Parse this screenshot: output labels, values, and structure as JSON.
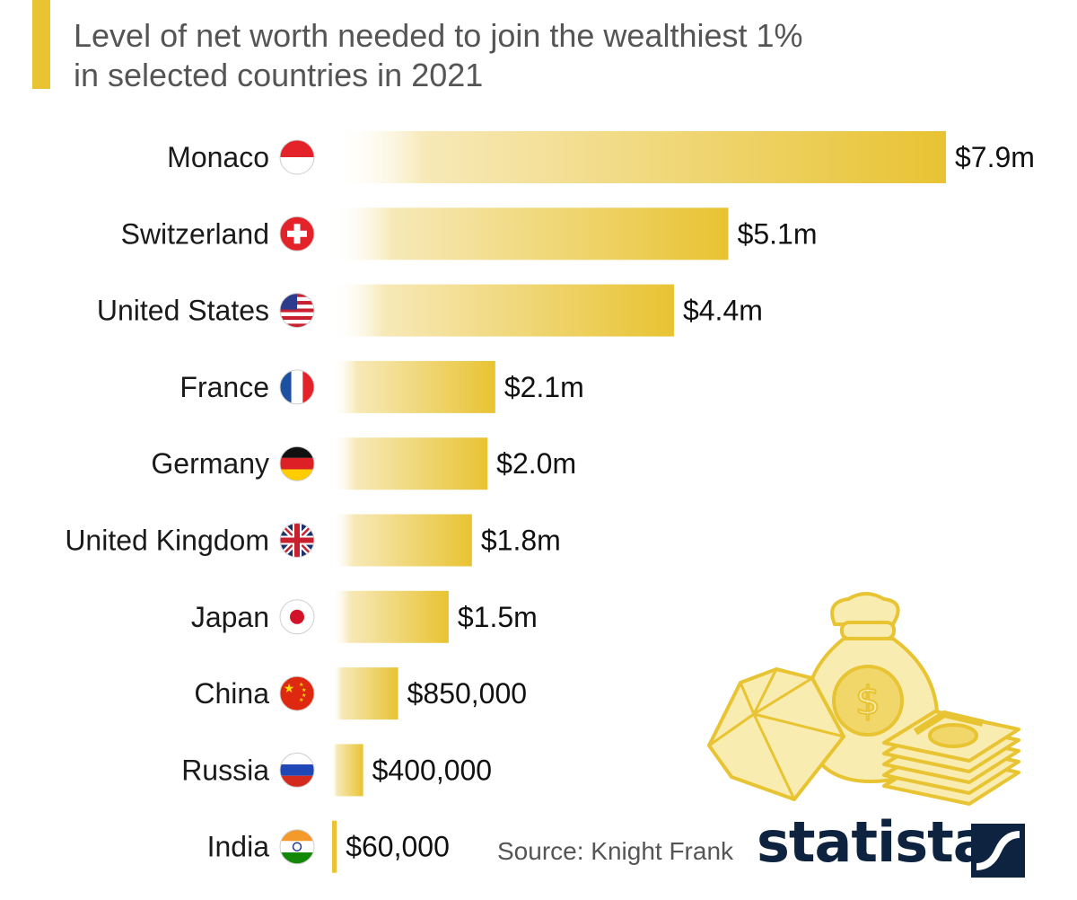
{
  "title": {
    "line1": "Level of net worth needed to join the wealthiest 1%",
    "line2": "in selected countries in 2021"
  },
  "source": "Source: Knight Frank",
  "brand": "statista",
  "colors": {
    "accent": "#e8c332",
    "bar_end": "#e8c332",
    "bar_start": "#ffffff",
    "logo": "#0d2340"
  },
  "chart_data": {
    "type": "bar",
    "orientation": "horizontal",
    "categories": [
      "Monaco",
      "Switzerland",
      "United States",
      "France",
      "Germany",
      "United Kingdom",
      "Japan",
      "China",
      "Russia",
      "India"
    ],
    "values": [
      7900000,
      5100000,
      4400000,
      2100000,
      2000000,
      1800000,
      1500000,
      850000,
      400000,
      60000
    ],
    "value_labels": [
      "$7.9m",
      "$5.1m",
      "$4.4m",
      "$2.1m",
      "$2.0m",
      "$1.8m",
      "$1.5m",
      "$850,000",
      "$400,000",
      "$60,000"
    ],
    "flags": [
      "monaco-flag-icon",
      "switzerland-flag-icon",
      "united-states-flag-icon",
      "france-flag-icon",
      "germany-flag-icon",
      "united-kingdom-flag-icon",
      "japan-flag-icon",
      "china-flag-icon",
      "russia-flag-icon",
      "india-flag-icon"
    ],
    "title": "Level of net worth needed to join the wealthiest 1% in selected countries in 2021",
    "xlim": [
      0,
      7900000
    ],
    "grid": false,
    "legend": "none"
  }
}
